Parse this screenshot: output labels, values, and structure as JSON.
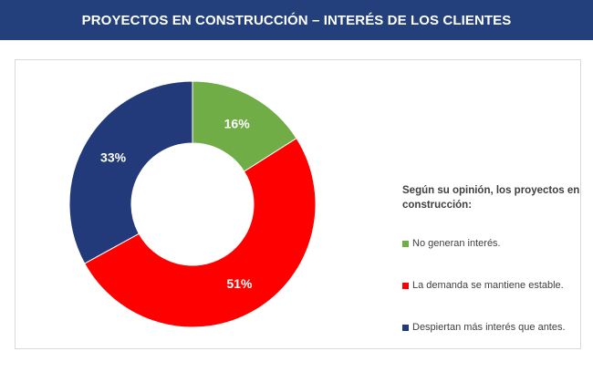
{
  "header": {
    "title": "PROYECTOS EN CONSTRUCCIÓN – INTERÉS DE LOS CLIENTES"
  },
  "chart_data": {
    "type": "pie",
    "variant": "donut",
    "title": "PROYECTOS EN CONSTRUCCIÓN – INTERÉS DE LOS CLIENTES",
    "legend_title": "Según su opinión, los proyectos en construcción:",
    "legend_position": "right",
    "slices": [
      {
        "label": "No generan interés.",
        "value": 16,
        "display": "16%",
        "color": "#70ad47"
      },
      {
        "label": "La demanda se mantiene estable.",
        "value": 51,
        "display": "51%",
        "color": "#ff0000"
      },
      {
        "label": "Despiertan más interés que antes.",
        "value": 33,
        "display": "33%",
        "color": "#233a7a"
      }
    ]
  }
}
